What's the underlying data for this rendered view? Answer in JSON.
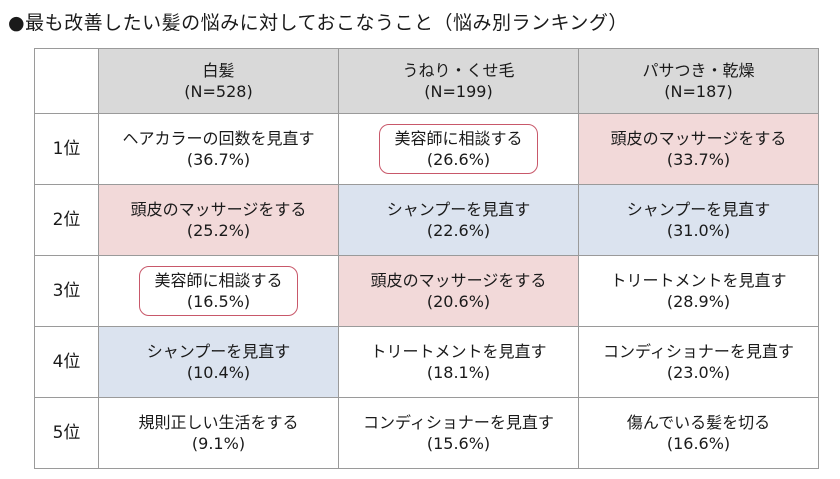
{
  "title": "●最も改善したい髪の悩みに対しておこなうこと（悩み別ランキング）",
  "columns": [
    {
      "name": "白髪",
      "n": "(N=528)"
    },
    {
      "name": "うねり・くせ毛",
      "n": "(N=199)"
    },
    {
      "name": "パサつき・乾燥",
      "n": "(N=187)"
    }
  ],
  "rows": [
    {
      "rank": "1位",
      "cells": [
        {
          "label": "ヘアカラーの回数を見直す",
          "pct": "(36.7%)",
          "style": "plain"
        },
        {
          "label": "美容師に相談する",
          "pct": "(26.6%)",
          "style": "boxed"
        },
        {
          "label": "頭皮のマッサージをする",
          "pct": "(33.7%)",
          "style": "pink"
        }
      ]
    },
    {
      "rank": "2位",
      "cells": [
        {
          "label": "頭皮のマッサージをする",
          "pct": "(25.2%)",
          "style": "pink"
        },
        {
          "label": "シャンプーを見直す",
          "pct": "(22.6%)",
          "style": "blue"
        },
        {
          "label": "シャンプーを見直す",
          "pct": "(31.0%)",
          "style": "blue"
        }
      ]
    },
    {
      "rank": "3位",
      "cells": [
        {
          "label": "美容師に相談する",
          "pct": "(16.5%)",
          "style": "boxed"
        },
        {
          "label": "頭皮のマッサージをする",
          "pct": "(20.6%)",
          "style": "pink"
        },
        {
          "label": "トリートメントを見直す",
          "pct": "(28.9%)",
          "style": "plain"
        }
      ]
    },
    {
      "rank": "4位",
      "cells": [
        {
          "label": "シャンプーを見直す",
          "pct": "(10.4%)",
          "style": "blue"
        },
        {
          "label": "トリートメントを見直す",
          "pct": "(18.1%)",
          "style": "plain"
        },
        {
          "label": "コンディショナーを見直す",
          "pct": "(23.0%)",
          "style": "plain"
        }
      ]
    },
    {
      "rank": "5位",
      "cells": [
        {
          "label": "規則正しい生活をする",
          "pct": "(9.1%)",
          "style": "plain"
        },
        {
          "label": "コンディショナーを見直す",
          "pct": "(15.6%)",
          "style": "plain"
        },
        {
          "label": "傷んでいる髪を切る",
          "pct": "(16.6%)",
          "style": "plain"
        }
      ]
    }
  ],
  "colors": {
    "pink": "#f2d9d9",
    "blue": "#dbe3ef",
    "header": "#d9d9d9",
    "box_border": "#c8586a"
  }
}
